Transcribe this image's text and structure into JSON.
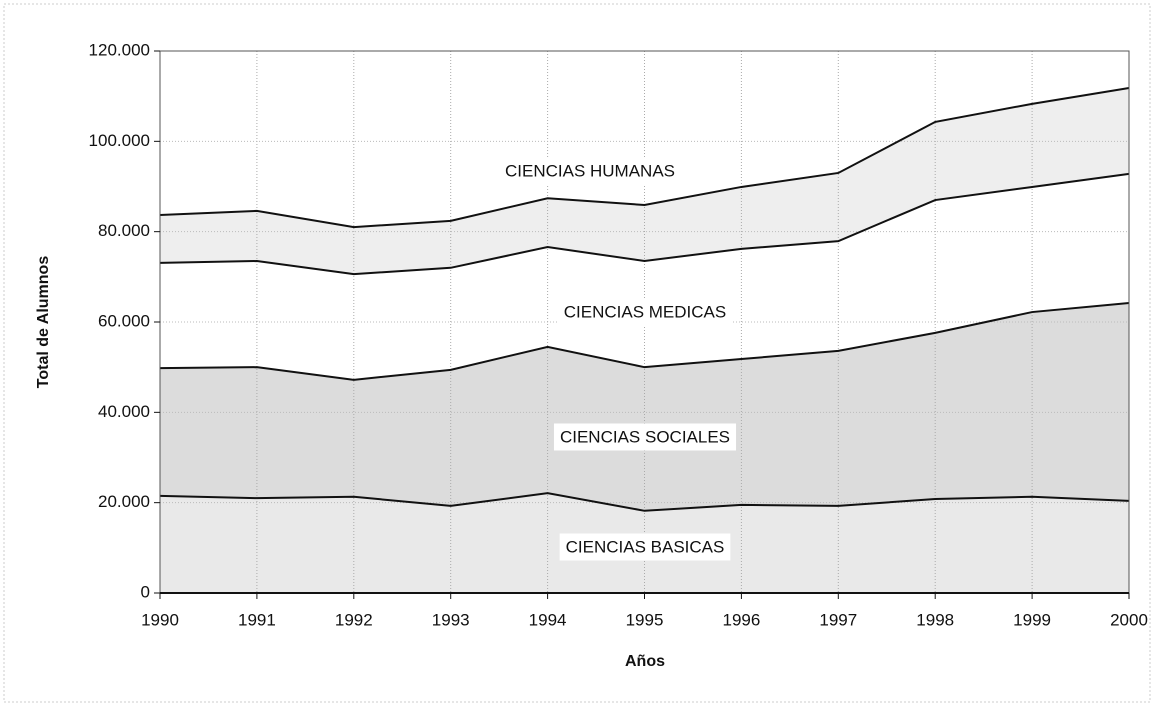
{
  "chart_data": {
    "type": "stacked_area",
    "x_label": "Años",
    "y_label": "Total de Alumnos",
    "x": [
      1990,
      1991,
      1992,
      1993,
      1994,
      1995,
      1996,
      1997,
      1998,
      1999,
      2000
    ],
    "xlim": [
      1990,
      2000
    ],
    "xticks": [
      1990,
      1991,
      1992,
      1993,
      1994,
      1995,
      1996,
      1997,
      1998,
      1999,
      2000
    ],
    "ylim": [
      0,
      120000
    ],
    "yticks": [
      0,
      {
        "value": 20000,
        "label": "20.000"
      },
      {
        "value": 40000,
        "label": "40.000"
      },
      {
        "value": 60000,
        "label": "60.000"
      },
      {
        "value": 80000,
        "label": "80.000"
      },
      {
        "value": 100000,
        "label": "100.000"
      },
      {
        "value": 120000,
        "label": "120.000"
      }
    ],
    "grid": true,
    "series": [
      {
        "name": "CIENCIAS BASICAS",
        "color": "#e9e9e9",
        "values": [
          21500,
          21000,
          21300,
          19300,
          22100,
          18200,
          19500,
          19300,
          20800,
          21300,
          20400
        ]
      },
      {
        "name": "CIENCIAS SOCIALES",
        "color": "#dcdcdc",
        "values": [
          28300,
          29000,
          25900,
          30100,
          32400,
          31800,
          32300,
          34300,
          36800,
          40900,
          43800
        ]
      },
      {
        "name": "CIENCIAS MEDICAS",
        "color": "#ffffff",
        "values": [
          23300,
          23500,
          23400,
          22600,
          22100,
          23500,
          24400,
          24300,
          29400,
          27700,
          28600
        ]
      },
      {
        "name": "CIENCIAS HUMANAS",
        "color": "#eeeeee",
        "values": [
          10600,
          11100,
          10400,
          10400,
          10800,
          12400,
          13700,
          15100,
          17300,
          18400,
          19000
        ]
      }
    ]
  }
}
